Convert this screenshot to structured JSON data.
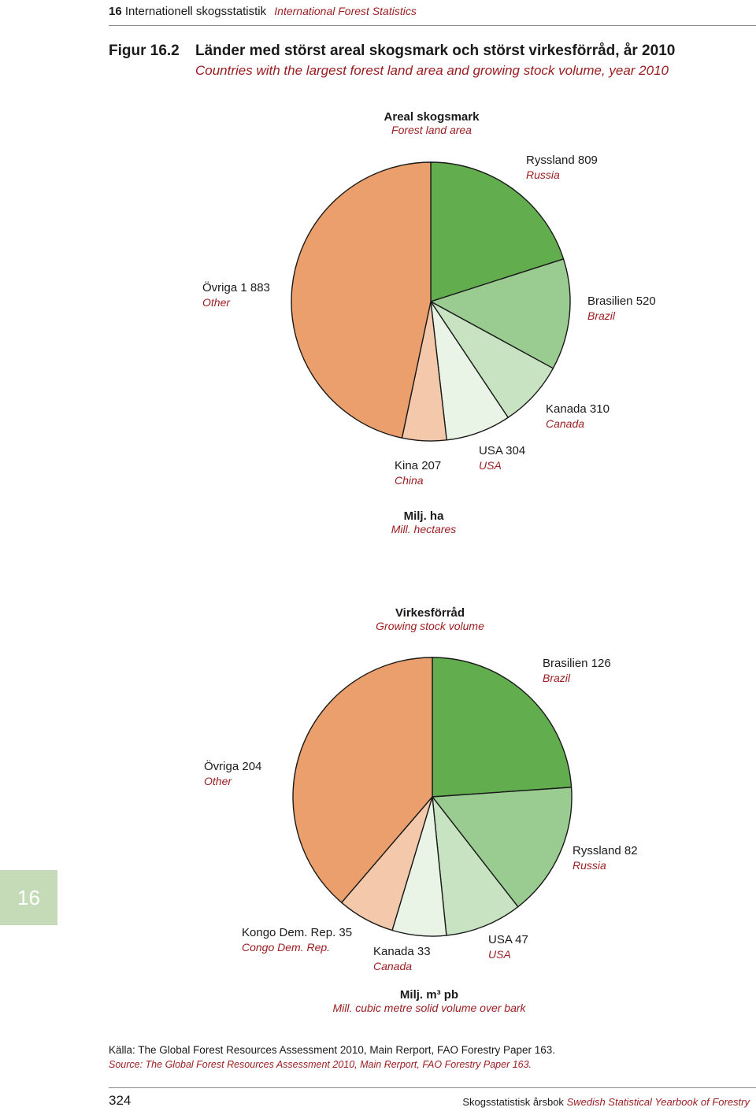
{
  "header": {
    "chapter_number": "16",
    "title_sv": "Internationell skogsstatistik",
    "title_en": "International Forest Statistics"
  },
  "figure": {
    "label": "Figur 16.2",
    "title_sv": "Länder med störst areal skogsmark och störst virkesförråd, år 2010",
    "title_en": "Countries with the largest forest land area and growing stock volume, year 2010"
  },
  "colors": {
    "slice_1": "#62ad4e",
    "slice_2": "#9acb91",
    "slice_3": "#c7e3c2",
    "slice_4": "#eaf4e6",
    "slice_5": "#f4c8ab",
    "other": "#eb9f6c",
    "stroke": "#1a1a1a",
    "accent_red": "#9b1c1f",
    "chapter_tab": "#c5dbb7"
  },
  "chart_data": [
    {
      "type": "pie",
      "title_sv": "Areal skogsmark",
      "title_en": "Forest land area",
      "unit_sv": "Milj. ha",
      "unit_en": "Mill. hectares",
      "slices": [
        {
          "label_sv": "Ryssland 809",
          "label_en": "Russia",
          "value": 809,
          "color": "#62ad4e"
        },
        {
          "label_sv": "Brasilien 520",
          "label_en": "Brazil",
          "value": 520,
          "color": "#9acb91"
        },
        {
          "label_sv": "Kanada 310",
          "label_en": "Canada",
          "value": 310,
          "color": "#c7e3c2"
        },
        {
          "label_sv": "USA 304",
          "label_en": "USA",
          "value": 304,
          "color": "#eaf4e6"
        },
        {
          "label_sv": "Kina 207",
          "label_en": "China",
          "value": 207,
          "color": "#f4c8ab"
        },
        {
          "label_sv": "Övriga 1 883",
          "label_en": "Other",
          "value": 1883,
          "color": "#eb9f6c"
        }
      ]
    },
    {
      "type": "pie",
      "title_sv": "Virkesförråd",
      "title_en": "Growing stock volume",
      "unit_sv": "Milj. m³ pb",
      "unit_en": "Mill. cubic metre solid volume over bark",
      "slices": [
        {
          "label_sv": "Brasilien 126",
          "label_en": "Brazil",
          "value": 126,
          "color": "#62ad4e"
        },
        {
          "label_sv": "Ryssland 82",
          "label_en": "Russia",
          "value": 82,
          "color": "#9acb91"
        },
        {
          "label_sv": "USA 47",
          "label_en": "USA",
          "value": 47,
          "color": "#c7e3c2"
        },
        {
          "label_sv": "Kanada 33",
          "label_en": "Canada",
          "value": 33,
          "color": "#eaf4e6"
        },
        {
          "label_sv": "Kongo Dem. Rep. 35",
          "label_en": "Congo Dem. Rep.",
          "value": 35,
          "color": "#f4c8ab"
        },
        {
          "label_sv": "Övriga 204",
          "label_en": "Other",
          "value": 204,
          "color": "#eb9f6c"
        }
      ]
    }
  ],
  "chapter_tab": "16",
  "source": {
    "sv": "Källa: The Global Forest Resources Assessment 2010, Main Rerport, FAO Forestry Paper 163.",
    "en": "Source: The Global Forest Resources Assessment 2010, Main Rerport, FAO Forestry Paper 163."
  },
  "footer": {
    "page_number": "324",
    "title_sv": "Skogsstatistisk årsbok",
    "title_en": "Swedish Statistical Yearbook of Forestry"
  }
}
